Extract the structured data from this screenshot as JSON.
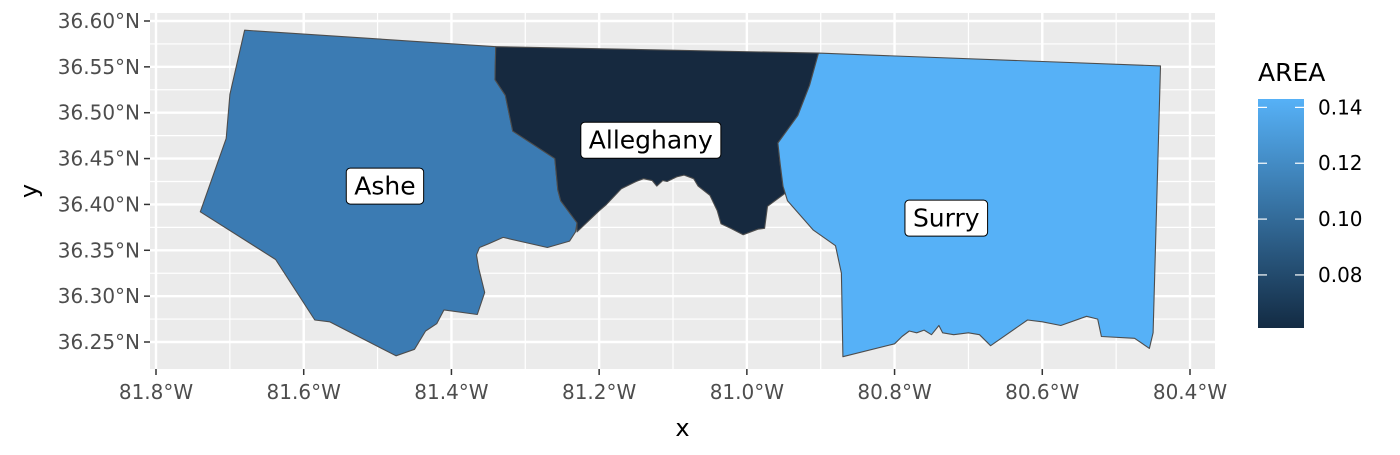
{
  "chart_data": {
    "type": "choropleth",
    "xlabel": "x",
    "ylabel": "y",
    "x_ticks": [
      {
        "value": -81.8,
        "label": "81.8°W"
      },
      {
        "value": -81.6,
        "label": "81.6°W"
      },
      {
        "value": -81.4,
        "label": "81.4°W"
      },
      {
        "value": -81.2,
        "label": "81.2°W"
      },
      {
        "value": -81.0,
        "label": "81.0°W"
      },
      {
        "value": -80.8,
        "label": "80.8°W"
      },
      {
        "value": -80.6,
        "label": "80.6°W"
      },
      {
        "value": -80.4,
        "label": "80.4°W"
      }
    ],
    "y_ticks": [
      {
        "value": 36.25,
        "label": "36.25°N"
      },
      {
        "value": 36.3,
        "label": "36.30°N"
      },
      {
        "value": 36.35,
        "label": "36.35°N"
      },
      {
        "value": 36.4,
        "label": "36.40°N"
      },
      {
        "value": 36.45,
        "label": "36.45°N"
      },
      {
        "value": 36.5,
        "label": "36.50°N"
      },
      {
        "value": 36.55,
        "label": "36.55°N"
      },
      {
        "value": 36.6,
        "label": "36.60°N"
      }
    ],
    "xlim": [
      -81.8,
      -80.4
    ],
    "ylim": [
      36.25,
      36.6
    ],
    "grid": true,
    "legend": {
      "title": "AREA",
      "position": "right",
      "min": 0.061,
      "max": 0.143,
      "low_color": "#132B43",
      "high_color": "#56B1F7",
      "ticks": [
        {
          "value": 0.08,
          "label": "0.08"
        },
        {
          "value": 0.1,
          "label": "0.10"
        },
        {
          "value": 0.12,
          "label": "0.12"
        },
        {
          "value": 0.14,
          "label": "0.14"
        }
      ]
    },
    "regions": [
      {
        "name": "Ashe",
        "area": 0.114,
        "fill": "#3B7BB3",
        "label_lon": -81.49,
        "label_lat": 36.42,
        "boundary": [
          [
            -81.68,
            36.59
          ],
          [
            -81.34,
            36.572
          ],
          [
            -81.341,
            36.536
          ],
          [
            -81.327,
            36.519
          ],
          [
            -81.317,
            36.48
          ],
          [
            -81.26,
            36.45
          ],
          [
            -81.256,
            36.416
          ],
          [
            -81.252,
            36.404
          ],
          [
            -81.23,
            36.38
          ],
          [
            -81.232,
            36.37
          ],
          [
            -81.24,
            36.36
          ],
          [
            -81.27,
            36.353
          ],
          [
            -81.33,
            36.364
          ],
          [
            -81.35,
            36.357
          ],
          [
            -81.362,
            36.353
          ],
          [
            -81.366,
            36.345
          ],
          [
            -81.363,
            36.33
          ],
          [
            -81.355,
            36.304
          ],
          [
            -81.365,
            36.28
          ],
          [
            -81.41,
            36.285
          ],
          [
            -81.42,
            36.27
          ],
          [
            -81.435,
            36.262
          ],
          [
            -81.45,
            36.242
          ],
          [
            -81.475,
            36.235
          ],
          [
            -81.565,
            36.272
          ],
          [
            -81.585,
            36.274
          ],
          [
            -81.638,
            36.34
          ],
          [
            -81.74,
            36.392
          ],
          [
            -81.705,
            36.472
          ],
          [
            -81.7,
            36.52
          ]
        ]
      },
      {
        "name": "Alleghany",
        "area": 0.061,
        "fill": "#16293F",
        "label_lon": -81.13,
        "label_lat": 36.47,
        "boundary": [
          [
            -81.34,
            36.572
          ],
          [
            -80.903,
            36.565
          ],
          [
            -80.915,
            36.53
          ],
          [
            -80.931,
            36.497
          ],
          [
            -80.958,
            36.467
          ],
          [
            -80.955,
            36.445
          ],
          [
            -80.951,
            36.42
          ],
          [
            -80.945,
            36.414
          ],
          [
            -80.962,
            36.404
          ],
          [
            -80.972,
            36.398
          ],
          [
            -80.976,
            36.374
          ],
          [
            -80.985,
            36.373
          ],
          [
            -81.005,
            36.367
          ],
          [
            -81.022,
            36.374
          ],
          [
            -81.035,
            36.379
          ],
          [
            -81.04,
            36.393
          ],
          [
            -81.05,
            36.41
          ],
          [
            -81.066,
            36.42
          ],
          [
            -81.072,
            36.428
          ],
          [
            -81.085,
            36.432
          ],
          [
            -81.095,
            36.43
          ],
          [
            -81.108,
            36.425
          ],
          [
            -81.114,
            36.426
          ],
          [
            -81.122,
            36.42
          ],
          [
            -81.128,
            36.426
          ],
          [
            -81.14,
            36.428
          ],
          [
            -81.15,
            36.425
          ],
          [
            -81.17,
            36.417
          ],
          [
            -81.19,
            36.4
          ],
          [
            -81.2,
            36.393
          ],
          [
            -81.23,
            36.37
          ],
          [
            -81.23,
            36.38
          ],
          [
            -81.252,
            36.404
          ],
          [
            -81.256,
            36.416
          ],
          [
            -81.26,
            36.45
          ],
          [
            -81.317,
            36.48
          ],
          [
            -81.327,
            36.519
          ],
          [
            -81.341,
            36.536
          ]
        ]
      },
      {
        "name": "Surry",
        "area": 0.143,
        "fill": "#56B1F7",
        "label_lon": -80.73,
        "label_lat": 36.385,
        "boundary": [
          [
            -80.903,
            36.565
          ],
          [
            -80.44,
            36.551
          ],
          [
            -80.45,
            36.26
          ],
          [
            -80.455,
            36.243
          ],
          [
            -80.475,
            36.254
          ],
          [
            -80.52,
            36.256
          ],
          [
            -80.525,
            36.275
          ],
          [
            -80.54,
            36.278
          ],
          [
            -80.575,
            36.268
          ],
          [
            -80.6,
            36.272
          ],
          [
            -80.62,
            36.274
          ],
          [
            -80.67,
            36.246
          ],
          [
            -80.685,
            36.258
          ],
          [
            -80.7,
            36.26
          ],
          [
            -80.72,
            36.258
          ],
          [
            -80.735,
            36.26
          ],
          [
            -80.74,
            36.268
          ],
          [
            -80.75,
            36.258
          ],
          [
            -80.76,
            36.263
          ],
          [
            -80.77,
            36.26
          ],
          [
            -80.78,
            36.262
          ],
          [
            -80.79,
            36.256
          ],
          [
            -80.8,
            36.248
          ],
          [
            -80.87,
            36.234
          ],
          [
            -80.872,
            36.325
          ],
          [
            -80.88,
            36.355
          ],
          [
            -80.91,
            36.372
          ],
          [
            -80.945,
            36.404
          ],
          [
            -80.951,
            36.42
          ],
          [
            -80.955,
            36.445
          ],
          [
            -80.958,
            36.467
          ],
          [
            -80.931,
            36.497
          ],
          [
            -80.915,
            36.53
          ]
        ]
      }
    ]
  }
}
